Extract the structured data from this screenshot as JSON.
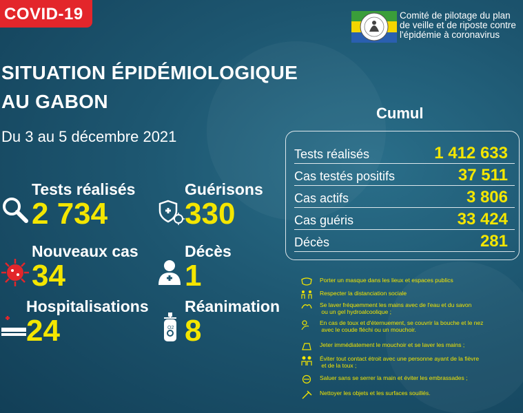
{
  "badge": "COVID-19",
  "org": {
    "line1": "Comité de pilotage du plan",
    "line2": "de veille et de riposte contre",
    "line3": "l'épidémie à coronavirus"
  },
  "title": {
    "line1": "SITUATION ÉPIDÉMIOLOGIQUE",
    "line2": "AU GABON"
  },
  "period": "Du 3 au 5 décembre 2021",
  "stats": [
    {
      "label": "Tests réalisés",
      "value": "2 734"
    },
    {
      "label": "Guérisons",
      "value": "330"
    },
    {
      "label": "Nouveaux cas",
      "value": "34"
    },
    {
      "label": "Décès",
      "value": "1"
    },
    {
      "label": "Hospitalisations",
      "value": "24"
    },
    {
      "label": "Réanimation",
      "value": "8"
    }
  ],
  "cumul": {
    "title": "Cumul",
    "rows": [
      {
        "label": "Tests réalisés",
        "value": "1 412 633"
      },
      {
        "label": "Cas testés positifs",
        "value": "37 511"
      },
      {
        "label": "Cas actifs",
        "value": "3 806"
      },
      {
        "label": "Cas guéris",
        "value": "33 424"
      },
      {
        "label": "Décès",
        "value": "281"
      }
    ]
  },
  "advice": [
    {
      "text": "Porter un masque dans les lieux et espaces publics",
      "icon": "mask-icon"
    },
    {
      "text": "Respecter la distanciation sociale",
      "icon": "distance-icon"
    },
    {
      "text": "Se laver fréquemment les mains avec de l'eau et du savon\n ou un gel hydroalcoolique ;",
      "icon": "handwash-icon"
    },
    {
      "text": "En cas de toux et d'éternuement, se couvrir la bouche et le nez\n avec le coude fléchi ou un mouchoir.",
      "icon": "cough-icon"
    },
    {
      "text": "Jeter immédiatement le mouchoir et se laver les mains ;",
      "icon": "tissue-icon"
    },
    {
      "text": "Éviter tout contact étroit avec une personne ayant de la fièvre\n et de la toux ;",
      "icon": "contact-icon"
    },
    {
      "text": "Saluer sans se serrer la main et éviter les embrassades ;",
      "icon": "greeting-icon"
    },
    {
      "text": "Nettoyer les objets et les surfaces souillés.",
      "icon": "cleaning-icon"
    }
  ],
  "colors": {
    "accent": "#f4e600",
    "badge": "#e3262b",
    "background": "#1d5670"
  }
}
